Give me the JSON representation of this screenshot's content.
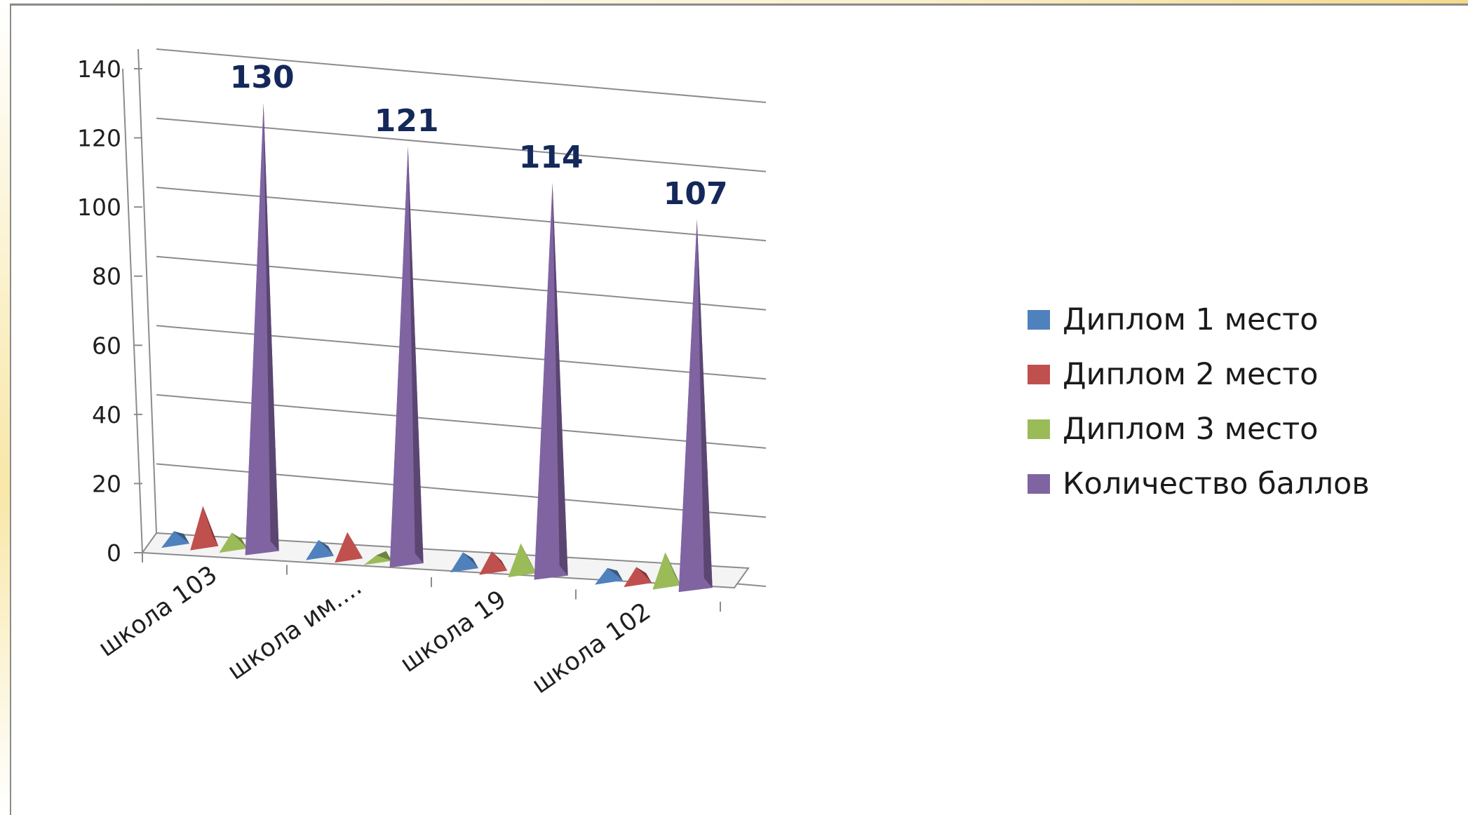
{
  "chart_data": {
    "type": "bar",
    "style": "3d-pyramid",
    "categories": [
      "школа 103",
      "школа им....",
      "школа 19",
      "школа 102"
    ],
    "series": [
      {
        "name": "Диплом 1 место",
        "color": "#4f81bd",
        "values": [
          4,
          5,
          5,
          4
        ]
      },
      {
        "name": "Диплом 2 место",
        "color": "#c0504d",
        "values": [
          12,
          8,
          6,
          5
        ]
      },
      {
        "name": "Диплом 3 место",
        "color": "#9bbb59",
        "values": [
          5,
          2,
          9,
          10
        ]
      },
      {
        "name": "Количество баллов",
        "color": "#8064a2",
        "values": [
          130,
          121,
          114,
          107
        ]
      }
    ],
    "data_labels": {
      "series": "Количество баллов",
      "values": [
        "130",
        "121",
        "114",
        "107"
      ]
    },
    "ylim": [
      0,
      140
    ],
    "yticks": [
      "0",
      "20",
      "40",
      "60",
      "80",
      "100",
      "120",
      "140"
    ],
    "grid": true,
    "legend": "right"
  }
}
